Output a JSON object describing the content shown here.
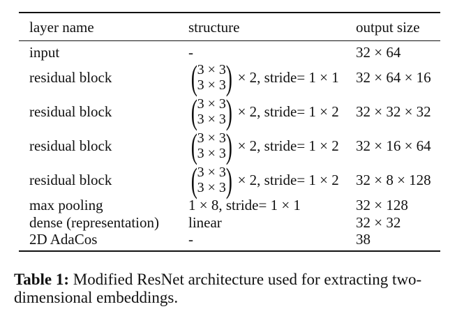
{
  "table": {
    "headers": [
      "layer name",
      "structure",
      "output size"
    ],
    "rows": [
      {
        "layer": "input",
        "structure": "-",
        "output": "32 × 64"
      },
      {
        "layer": "residual block",
        "kernel_top": "3 × 3",
        "kernel_bottom": "3 × 3",
        "structure_suffix": "× 2, stride= 1 × 1",
        "output": "32 × 64 × 16"
      },
      {
        "layer": "residual block",
        "kernel_top": "3 × 3",
        "kernel_bottom": "3 × 3",
        "structure_suffix": "× 2, stride= 1 × 2",
        "output": "32 × 32 × 32"
      },
      {
        "layer": "residual block",
        "kernel_top": "3 × 3",
        "kernel_bottom": "3 × 3",
        "structure_suffix": "× 2, stride= 1 × 2",
        "output": "32 × 16 × 64"
      },
      {
        "layer": "residual block",
        "kernel_top": "3 × 3",
        "kernel_bottom": "3 × 3",
        "structure_suffix": "× 2, stride= 1 × 2",
        "output": "32 × 8 × 128"
      },
      {
        "layer": "max pooling",
        "structure": "1 × 8, stride= 1 × 1",
        "output": "32 × 128"
      },
      {
        "layer": "dense (representation)",
        "structure": "linear",
        "output": "32 × 32"
      },
      {
        "layer": "2D AdaCos",
        "structure": "-",
        "output": "38"
      }
    ]
  },
  "caption": {
    "label": "Table 1:",
    "text": "Modified ResNet architecture used for extracting two-dimensional embeddings."
  }
}
